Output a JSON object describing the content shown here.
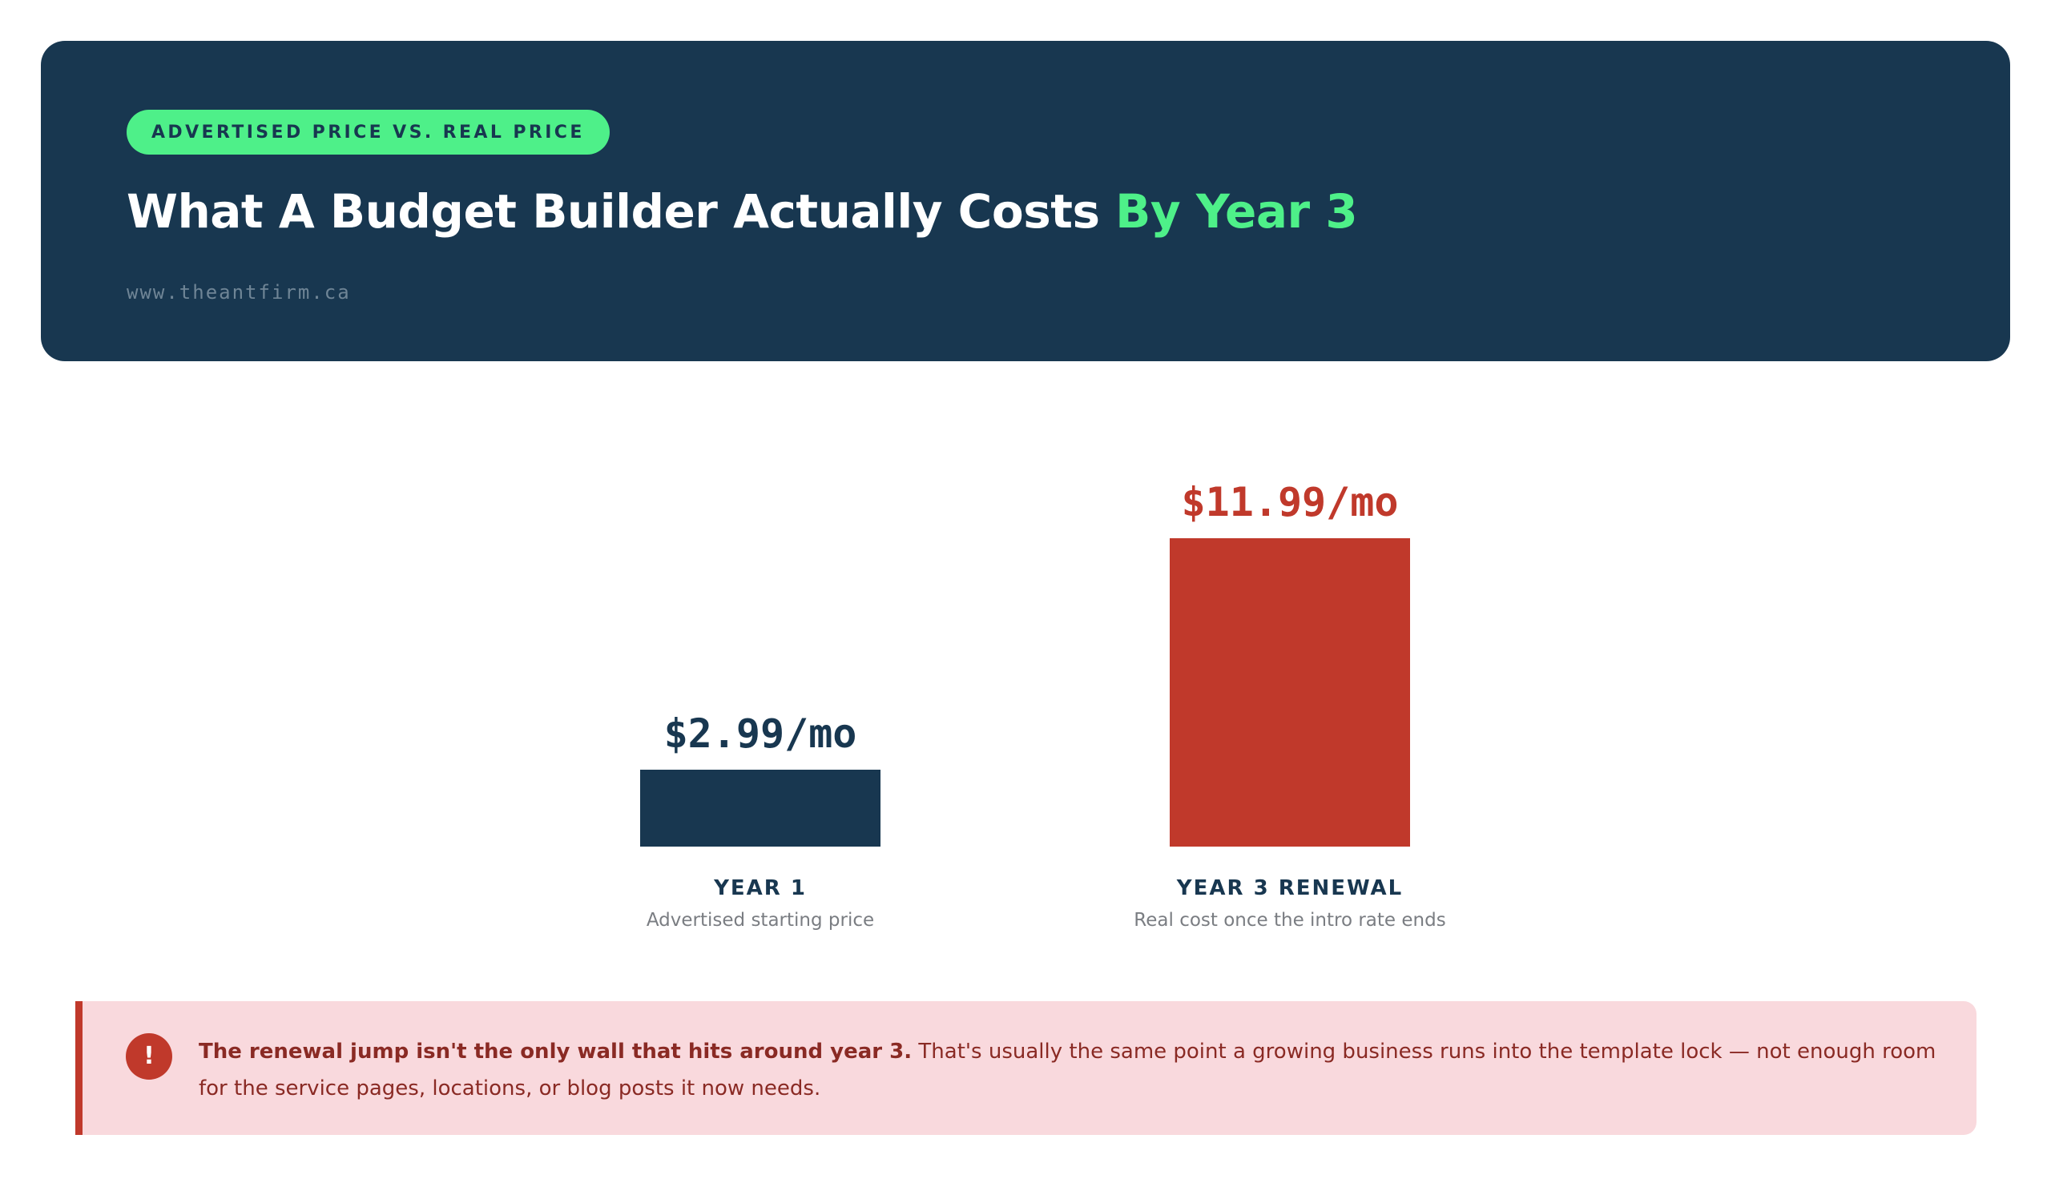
{
  "header": {
    "badge": "ADVERTISED PRICE VS. REAL PRICE",
    "title_main": "What A Budget Builder Actually Costs ",
    "title_accent": "By Year 3",
    "site_url": "www.theantfirm.ca"
  },
  "chart_data": {
    "type": "bar",
    "title": "What A Budget Builder Actually Costs By Year 3",
    "categories": [
      "YEAR 1",
      "YEAR 3 RENEWAL"
    ],
    "subtitles": [
      "Advertised starting price",
      "Real cost once the intro rate ends"
    ],
    "values": [
      2.99,
      11.99
    ],
    "value_labels": [
      "$2.99/mo",
      "$11.99/mo"
    ],
    "colors": [
      "#183750",
      "#c0392b"
    ],
    "ylim": [
      0,
      11.99
    ],
    "grid": false,
    "legend": "none"
  },
  "callout": {
    "icon": "exclamation-icon",
    "bold_text": "The renewal jump isn't the only wall that hits around year 3.",
    "body_text": " That's usually the same point a growing business runs into the template lock — not enough room for the service pages, locations, or blog posts it now needs."
  },
  "colors": {
    "navy": "#183750",
    "green": "#4ef089",
    "red": "#c0392b",
    "callout_bg": "#f9d9dd"
  }
}
